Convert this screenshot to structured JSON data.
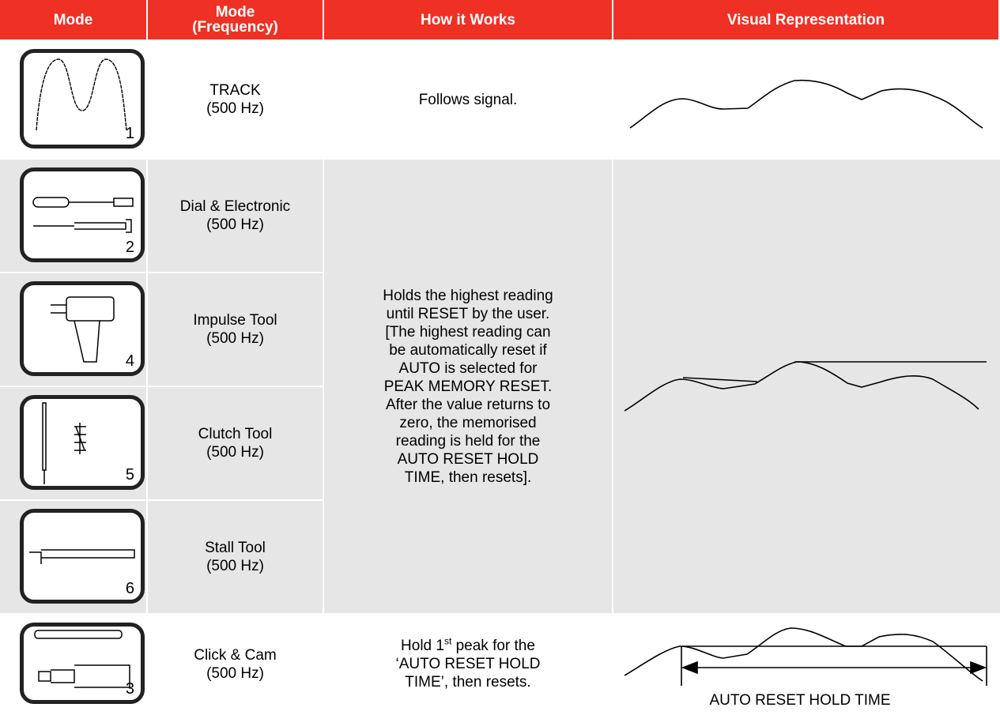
{
  "table": {
    "header": [
      [
        "Mode"
      ],
      [
        "Mode",
        "(Frequency)"
      ],
      [
        "How it Works"
      ],
      [
        "Visual Representation"
      ]
    ],
    "rows": [
      {
        "number": "1",
        "mode": "TRACK",
        "frequency": "(500 Hz)",
        "how_lines": [
          "Follows signal."
        ]
      },
      {
        "number": "2",
        "mode": "Dial & Electronic",
        "frequency": "(500 Hz)"
      },
      {
        "number": "4",
        "mode": "Impulse Tool",
        "frequency": "(500 Hz)"
      },
      {
        "number": "5",
        "mode": "Clutch Tool",
        "frequency": "(500 Hz)"
      },
      {
        "number": "6",
        "mode": "Stall Tool",
        "frequency": "(500 Hz)"
      },
      {
        "number": "3",
        "mode": "Click & Cam",
        "frequency": "(500 Hz)",
        "how_lines": [
          {
            "text": "Hold 1",
            "sup": "st",
            "tail": " peak for the"
          },
          "‘AUTO RESET HOLD",
          "TIME’, then resets."
        ]
      }
    ],
    "shared_how_lines": [
      "Holds the highest reading",
      "until RESET by the user.",
      "[The highest reading can",
      "be automatically reset if",
      "AUTO is selected for",
      "PEAK MEMORY RESET.",
      "After the value returns to",
      "zero, the memorised",
      "reading is held for the",
      "AUTO RESET HOLD",
      "TIME, then resets]."
    ],
    "visual_label": "AUTO RESET HOLD TIME"
  }
}
